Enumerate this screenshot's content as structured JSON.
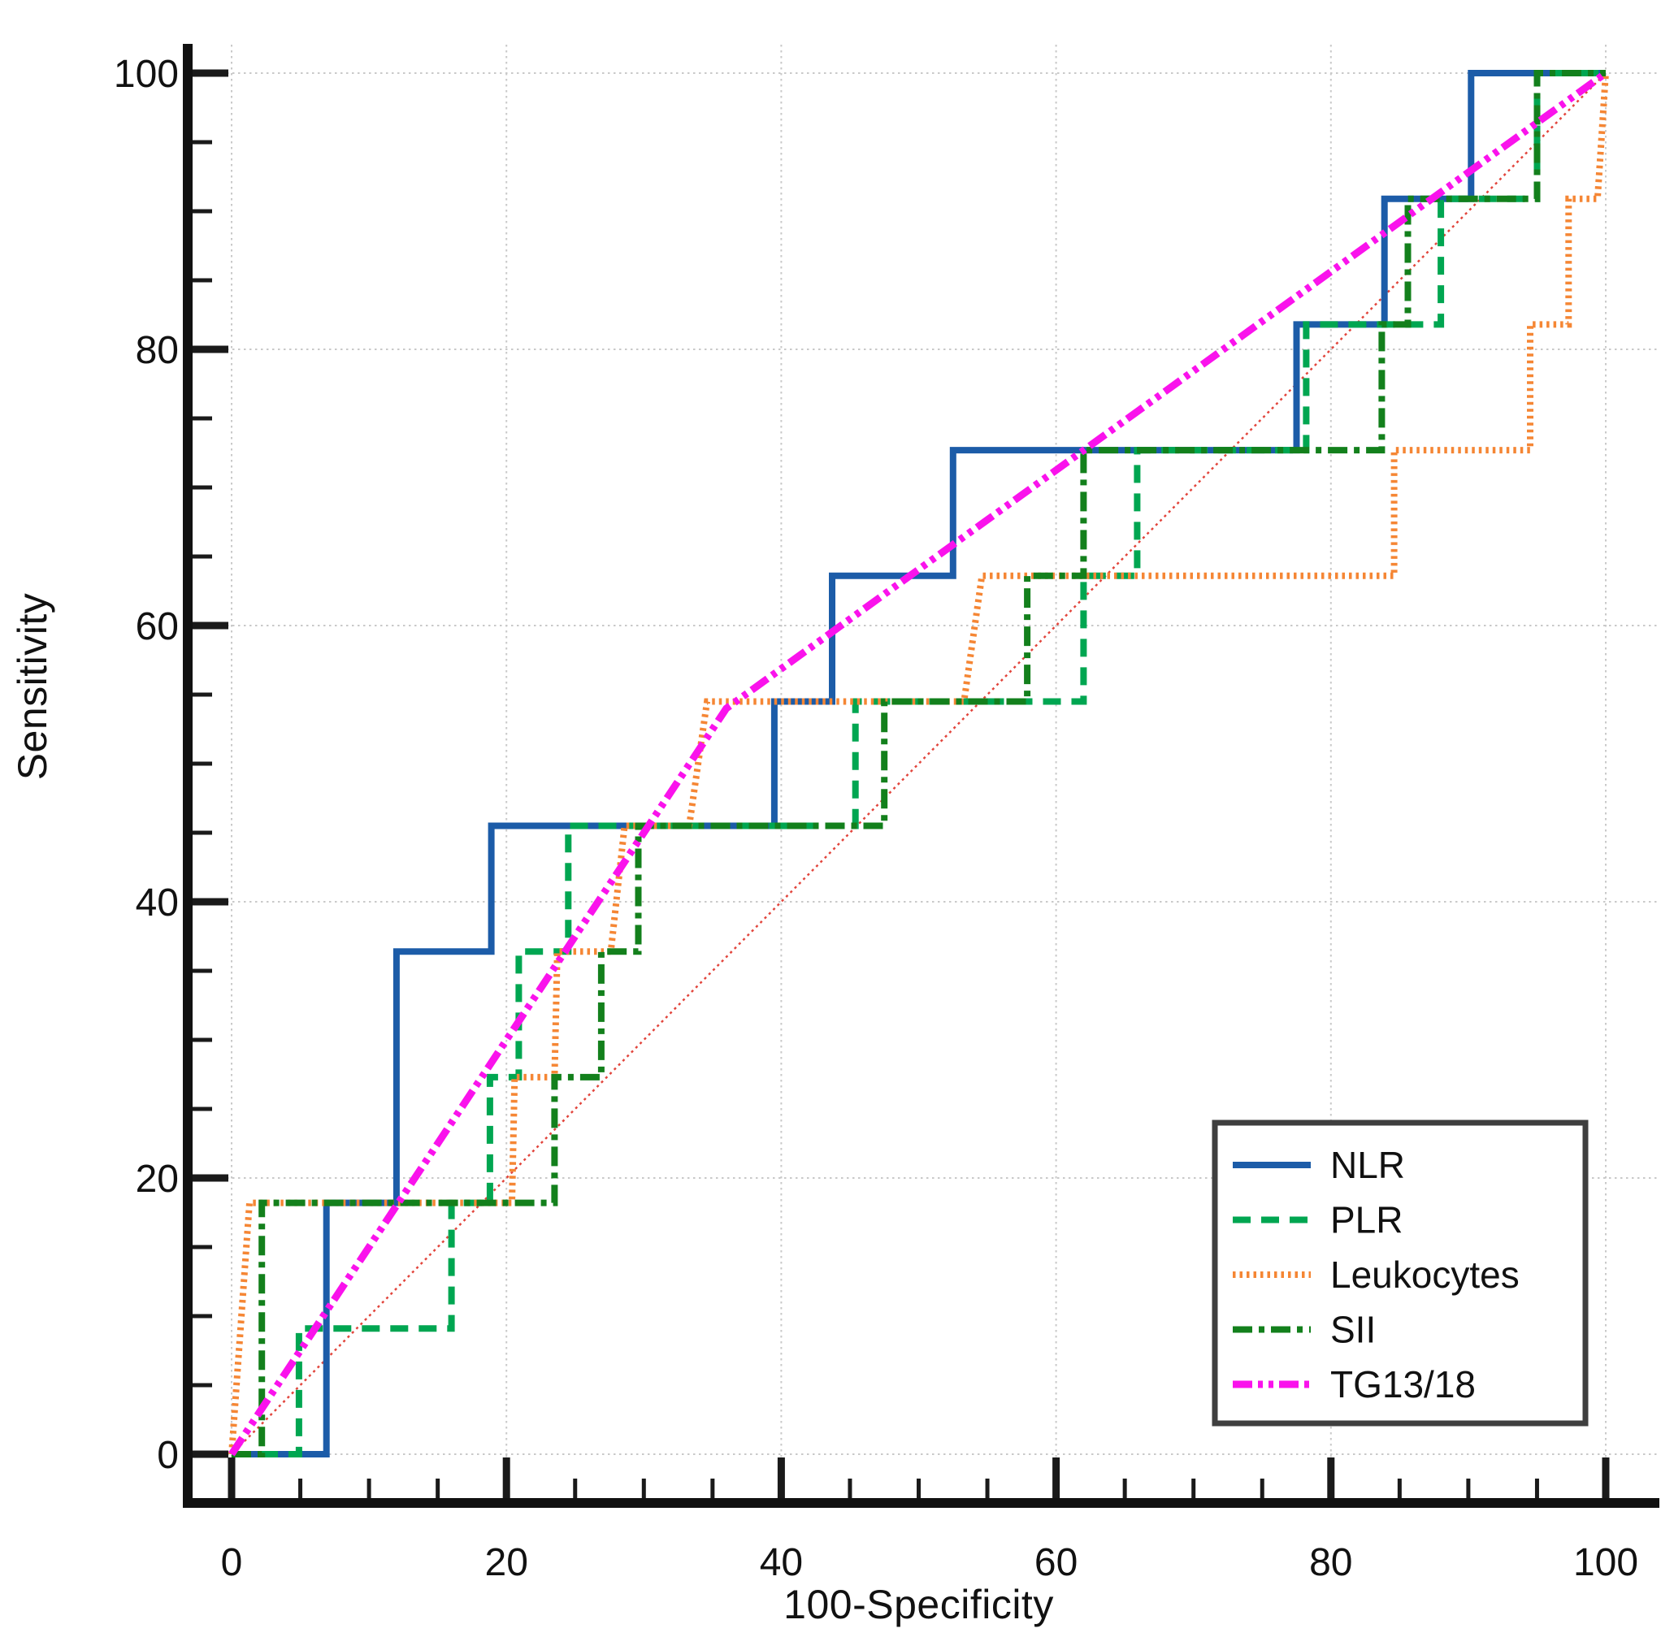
{
  "chart_data": {
    "type": "line",
    "subtype": "roc-step-curves",
    "title": "",
    "xlabel": "100-Specificity",
    "ylabel": "Sensitivity",
    "xlim": [
      0,
      100
    ],
    "ylim": [
      0,
      100
    ],
    "x_ticks": [
      0,
      20,
      40,
      60,
      80,
      100
    ],
    "y_ticks": [
      0,
      20,
      40,
      60,
      80,
      100
    ],
    "minor_tick_step": 5,
    "grid": true,
    "grid_color": "#c9c9c9",
    "axis_color": "#111111",
    "background_color": "#ffffff",
    "legend_position": "lower-right",
    "reference_line": {
      "name": "chance-diagonal",
      "color": "#e2453c",
      "style": "dotted",
      "points": [
        [
          0,
          0
        ],
        [
          100,
          100
        ]
      ]
    },
    "series": [
      {
        "name": "NLR",
        "color": "#1c5ca8",
        "style": "solid",
        "points": [
          [
            0,
            0
          ],
          [
            6.9,
            0
          ],
          [
            6.9,
            18.2
          ],
          [
            12,
            18.2
          ],
          [
            12,
            36.4
          ],
          [
            18.9,
            36.4
          ],
          [
            18.9,
            45.5
          ],
          [
            39.5,
            45.5
          ],
          [
            39.5,
            54.5
          ],
          [
            43.7,
            54.5
          ],
          [
            43.7,
            63.6
          ],
          [
            52.5,
            63.6
          ],
          [
            52.5,
            72.7
          ],
          [
            77.5,
            72.7
          ],
          [
            77.5,
            81.8
          ],
          [
            83.9,
            81.8
          ],
          [
            83.9,
            90.9
          ],
          [
            90.2,
            90.9
          ],
          [
            90.2,
            100
          ],
          [
            100,
            100
          ]
        ]
      },
      {
        "name": "PLR",
        "color": "#00a651",
        "style": "dashed",
        "points": [
          [
            0,
            0
          ],
          [
            4.9,
            0
          ],
          [
            4.9,
            9.1
          ],
          [
            16,
            9.1
          ],
          [
            16,
            18.2
          ],
          [
            18.8,
            18.2
          ],
          [
            18.8,
            27.3
          ],
          [
            20.9,
            27.3
          ],
          [
            20.9,
            36.4
          ],
          [
            24.5,
            36.4
          ],
          [
            24.5,
            45.5
          ],
          [
            45.4,
            45.5
          ],
          [
            45.4,
            54.5
          ],
          [
            62,
            54.5
          ],
          [
            62,
            63.6
          ],
          [
            65.9,
            63.6
          ],
          [
            65.9,
            72.7
          ],
          [
            78.2,
            72.7
          ],
          [
            78.2,
            81.8
          ],
          [
            88,
            81.8
          ],
          [
            88,
            90.9
          ],
          [
            95,
            90.9
          ],
          [
            95,
            100
          ],
          [
            100,
            100
          ]
        ]
      },
      {
        "name": "Leukocytes",
        "color": "#f58634",
        "style": "dotted",
        "points": [
          [
            0,
            0
          ],
          [
            1.3,
            18.2
          ],
          [
            20.4,
            18.2
          ],
          [
            20.6,
            27.3
          ],
          [
            23.5,
            27.3
          ],
          [
            23.7,
            36.4
          ],
          [
            27.6,
            36.4
          ],
          [
            28.6,
            45.5
          ],
          [
            33.3,
            45.5
          ],
          [
            34.6,
            54.5
          ],
          [
            53.3,
            54.5
          ],
          [
            54.6,
            63.6
          ],
          [
            84.6,
            63.6
          ],
          [
            84.6,
            72.7
          ],
          [
            94.5,
            72.7
          ],
          [
            94.5,
            81.8
          ],
          [
            97.3,
            81.8
          ],
          [
            97.3,
            90.9
          ],
          [
            99.4,
            90.9
          ],
          [
            100,
            100
          ]
        ]
      },
      {
        "name": "SII",
        "color": "#13801c",
        "style": "dash-dot",
        "points": [
          [
            0,
            0
          ],
          [
            2.2,
            0
          ],
          [
            2.2,
            18.2
          ],
          [
            23.5,
            18.2
          ],
          [
            23.5,
            27.3
          ],
          [
            26.9,
            27.3
          ],
          [
            26.9,
            36.4
          ],
          [
            29.6,
            36.4
          ],
          [
            29.6,
            45.5
          ],
          [
            47.5,
            45.5
          ],
          [
            47.5,
            54.5
          ],
          [
            57.9,
            54.5
          ],
          [
            57.9,
            63.6
          ],
          [
            62,
            63.6
          ],
          [
            62,
            72.7
          ],
          [
            83.7,
            72.7
          ],
          [
            83.7,
            81.8
          ],
          [
            85.6,
            81.8
          ],
          [
            85.6,
            90.9
          ],
          [
            95,
            90.9
          ],
          [
            95,
            100
          ],
          [
            100,
            100
          ]
        ]
      },
      {
        "name": "TG13/18",
        "color": "#fa12ec",
        "style": "dash-dot-dot",
        "points": [
          [
            0,
            0
          ],
          [
            36,
            54
          ],
          [
            100,
            100
          ]
        ]
      }
    ],
    "legend": {
      "items": [
        "NLR",
        "PLR",
        "Leukocytes",
        "SII",
        "TG13/18"
      ],
      "border_color": "#3f3f3f",
      "fill": "#ffffff"
    }
  }
}
